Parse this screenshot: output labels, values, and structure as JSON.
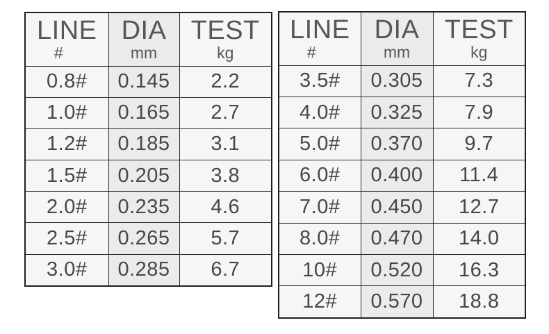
{
  "colors": {
    "page_bg": "#ffffff",
    "table_border": "#1f1f1f",
    "grid_line": "#2b2b2b",
    "cell_bg": "#f6f6f6",
    "dia_column_bg": "#ebebeb",
    "header_text": "#56575a",
    "value_text": "#47474a"
  },
  "chart_data": [
    {
      "type": "table",
      "name": "line-spec-table-left",
      "columns": [
        "LINE #",
        "DIA mm",
        "TEST kg"
      ],
      "headers": [
        {
          "label": "LINE",
          "unit": "#"
        },
        {
          "label": "DIA",
          "unit": "mm"
        },
        {
          "label": "TEST",
          "unit": "kg"
        }
      ],
      "rows": [
        [
          "0.8#",
          "0.145",
          "2.2"
        ],
        [
          "1.0#",
          "0.165",
          "2.7"
        ],
        [
          "1.2#",
          "0.185",
          "3.1"
        ],
        [
          "1.5#",
          "0.205",
          "3.8"
        ],
        [
          "2.0#",
          "0.235",
          "4.6"
        ],
        [
          "2.5#",
          "0.265",
          "5.7"
        ],
        [
          "3.0#",
          "0.285",
          "6.7"
        ]
      ]
    },
    {
      "type": "table",
      "name": "line-spec-table-right",
      "columns": [
        "LINE #",
        "DIA mm",
        "TEST kg"
      ],
      "headers": [
        {
          "label": "LINE",
          "unit": "#"
        },
        {
          "label": "DIA",
          "unit": "mm"
        },
        {
          "label": "TEST",
          "unit": "kg"
        }
      ],
      "rows": [
        [
          "3.5#",
          "0.305",
          "7.3"
        ],
        [
          "4.0#",
          "0.325",
          "7.9"
        ],
        [
          "5.0#",
          "0.370",
          "9.7"
        ],
        [
          "6.0#",
          "0.400",
          "11.4"
        ],
        [
          "7.0#",
          "0.450",
          "12.7"
        ],
        [
          "8.0#",
          "0.470",
          "14.0"
        ],
        [
          "10#",
          "0.520",
          "16.3"
        ],
        [
          "12#",
          "0.570",
          "18.8"
        ]
      ]
    }
  ]
}
